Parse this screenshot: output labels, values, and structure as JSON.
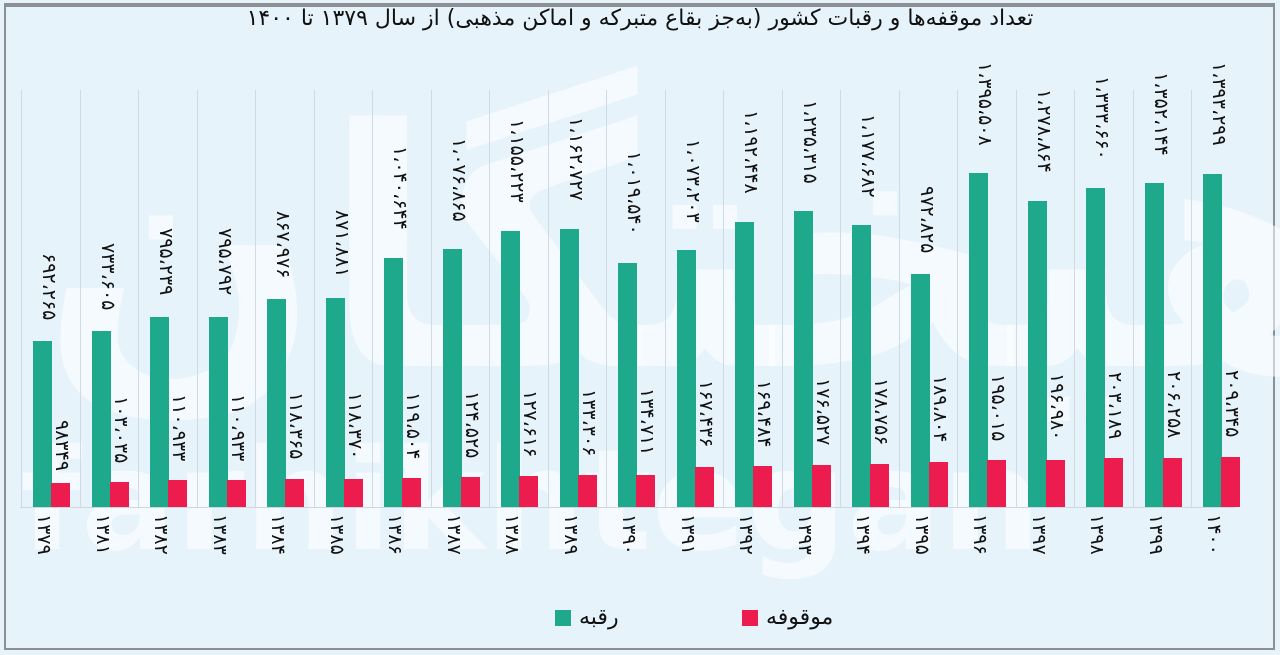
{
  "title": "تعداد موقفه‌ها و رقبات کشور (به‌جز بقاع متبرکه و اماکن مذهبی) از سال ۱۳۷۹ تا ۱۴۰۰",
  "watermark": "فرهیختگان",
  "watermark_latin": "farhikhtegan",
  "legend": {
    "raqabe": {
      "label": "رقبه",
      "color": "#1fa98c"
    },
    "mowqufe": {
      "label": "موقوفه",
      "color": "#ec1c4f"
    }
  },
  "chart_data": {
    "type": "bar",
    "title": "تعداد موقفه‌ها و رقبات کشور (به‌جز بقاع متبرکه و اماکن مذهبی) از سال ۱۳۷۹ تا ۱۴۰۰",
    "xlabel": "",
    "ylabel": "",
    "categories": [
      "1379",
      "1381",
      "1382",
      "1383",
      "1384",
      "1385",
      "1386",
      "1387",
      "1388",
      "1389",
      "1390",
      "1391",
      "1392",
      "1393",
      "1394",
      "1395",
      "1396",
      "1397",
      "1398",
      "1399",
      "1400"
    ],
    "categories_fa": [
      "۱۳۷۹",
      "۱۳۸۱",
      "۱۳۸۲",
      "۱۳۸۳",
      "۱۳۸۴",
      "۱۳۸۵",
      "۱۳۸۶",
      "۱۳۸۷",
      "۱۳۸۸",
      "۱۳۸۹",
      "۱۳۹۰",
      "۱۳۹۱",
      "۱۳۹۲",
      "۱۳۹۳",
      "۱۳۹۴",
      "۱۳۹۵",
      "۱۳۹۶",
      "۱۳۹۷",
      "۱۳۹۸",
      "۱۳۹۹",
      "۱۴۰۰"
    ],
    "series": [
      {
        "name": "رقبه",
        "color": "#1fa98c",
        "values": [
          692265,
          733605,
          795239,
          795792,
          867976,
          871881,
          1040644,
          1076865,
          1155223,
          1162727,
          1019540,
          1073203,
          1192448,
          1235315,
          1177682,
          972825,
          1395508,
          1278864,
          1333660,
          1352144,
          1393299
        ],
        "labels": [
          "۶۹۲،۲۶۵",
          "۷۳۳،۶۰۵",
          "۷۹۵،۲۳۹",
          "۷۹۵،۷۹۲",
          "۸۶۷،۹۷۶",
          "۸۷۱،۸۸۱",
          "۱،۰۴۰،۶۴۴",
          "۱،۰۷۶،۸۶۵",
          "۱،۱۵۵،۲۲۳",
          "۱،۱۶۲،۷۲۷",
          "۱،۰۱۹،۵۴۰",
          "۱،۰۷۳،۲۰۳",
          "۱،۱۹۲،۴۴۸",
          "۱،۲۳۵،۳۱۵",
          "۱،۱۷۷،۶۸۲",
          "۹۷۲،۸۲۵",
          "۱،۳۹۵،۵۰۸",
          "۱،۲۷۸،۸۶۴",
          "۱،۳۳۳،۶۶۰",
          "۱،۳۵۲،۱۴۴",
          "۱،۳۹۳،۲۹۹"
        ]
      },
      {
        "name": "موقوفه",
        "color": "#ec1c4f",
        "values": [
          98349,
          103035,
          110933,
          110933,
          118365,
          118370,
          119504,
          124525,
          127616,
          133306,
          134711,
          167436,
          169484,
          176527,
          178756,
          189804,
          195015,
          196980,
          203189,
          206258,
          209345
        ],
        "labels": [
          "۹۸۳۴۹",
          "۱۰۳،۰۳۵",
          "۱۱۰،۹۳۳",
          "۱۱۰،۹۳۳",
          "۱۱۸،۳۶۵",
          "۱۱۸،۳۷۰",
          "۱۱۹،۵۰۴",
          "۱۲۴،۵۲۵",
          "۱۲۷،۶۱۶",
          "۱۳۳،۳۰۶",
          "۱۳۴،۷۱۱",
          "۱۶۷،۴۳۶",
          "۱۶۹،۴۸۴",
          "۱۷۶،۵۲۷",
          "۱۷۸،۷۵۶",
          "۱۸۹،۸۰۴",
          "۱۹۵،۰۱۵",
          "۱۹۶،۹۸۰",
          "۲۰۳،۱۸۹",
          "۲۰۶،۲۵۸",
          "۲۰۹،۳۴۵"
        ]
      }
    ],
    "ylim": [
      0,
      1400000
    ],
    "grid": true,
    "legend_position": "bottom"
  }
}
